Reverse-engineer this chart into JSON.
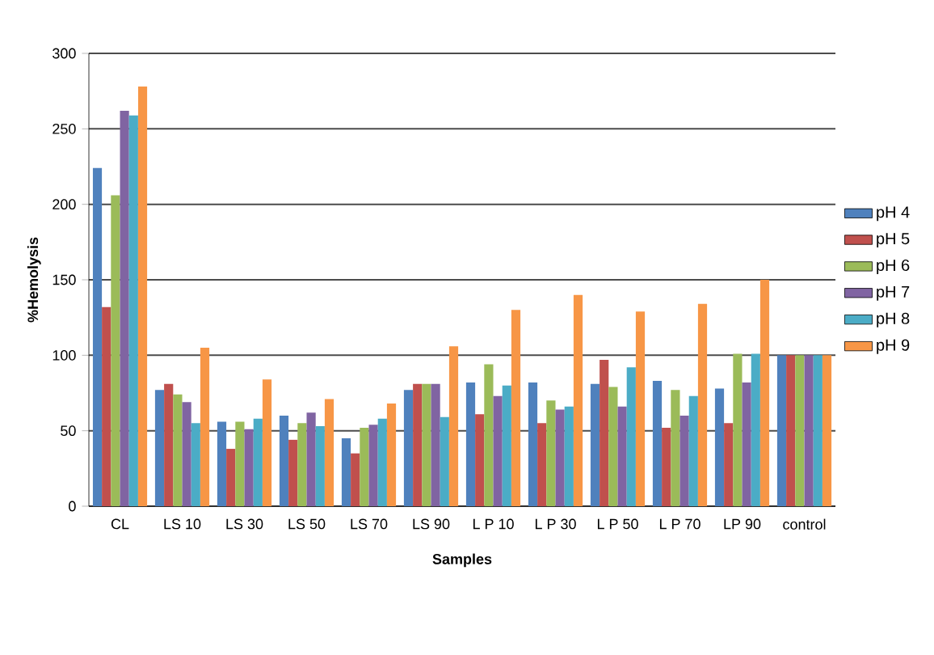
{
  "chart_data": {
    "type": "bar",
    "xlabel": "Samples",
    "ylabel": "%Hemolysis",
    "categories": [
      "CL",
      "LS 10",
      "LS 30",
      "LS 50",
      "LS 70",
      "LS 90",
      "L P 10",
      "L P 30",
      "L P 50",
      "L P 70",
      "LP 90",
      "control"
    ],
    "series": [
      {
        "name": "pH 4",
        "color": "#4f81bd",
        "values": [
          224,
          77,
          56,
          60,
          45,
          77,
          82,
          82,
          81,
          83,
          78,
          100
        ]
      },
      {
        "name": "pH 5",
        "color": "#c0504d",
        "values": [
          132,
          81,
          38,
          44,
          35,
          81,
          61,
          55,
          97,
          52,
          55,
          100
        ]
      },
      {
        "name": "pH 6",
        "color": "#9bbb59",
        "values": [
          206,
          74,
          56,
          55,
          52,
          81,
          94,
          70,
          79,
          77,
          101,
          100
        ]
      },
      {
        "name": "pH 7",
        "color": "#8064a2",
        "values": [
          262,
          69,
          51,
          62,
          54,
          81,
          73,
          64,
          66,
          60,
          82,
          100
        ]
      },
      {
        "name": "pH 8",
        "color": "#4bacc6",
        "values": [
          259,
          55,
          58,
          53,
          58,
          59,
          80,
          66,
          92,
          73,
          101,
          100
        ]
      },
      {
        "name": "pH 9",
        "color": "#f79646",
        "values": [
          278,
          105,
          84,
          71,
          68,
          106,
          130,
          140,
          129,
          134,
          150,
          100
        ]
      }
    ],
    "ylim": [
      0,
      300
    ],
    "yticks": [
      0,
      50,
      100,
      150,
      200,
      250,
      300
    ],
    "grid": "y",
    "legend": "right"
  }
}
